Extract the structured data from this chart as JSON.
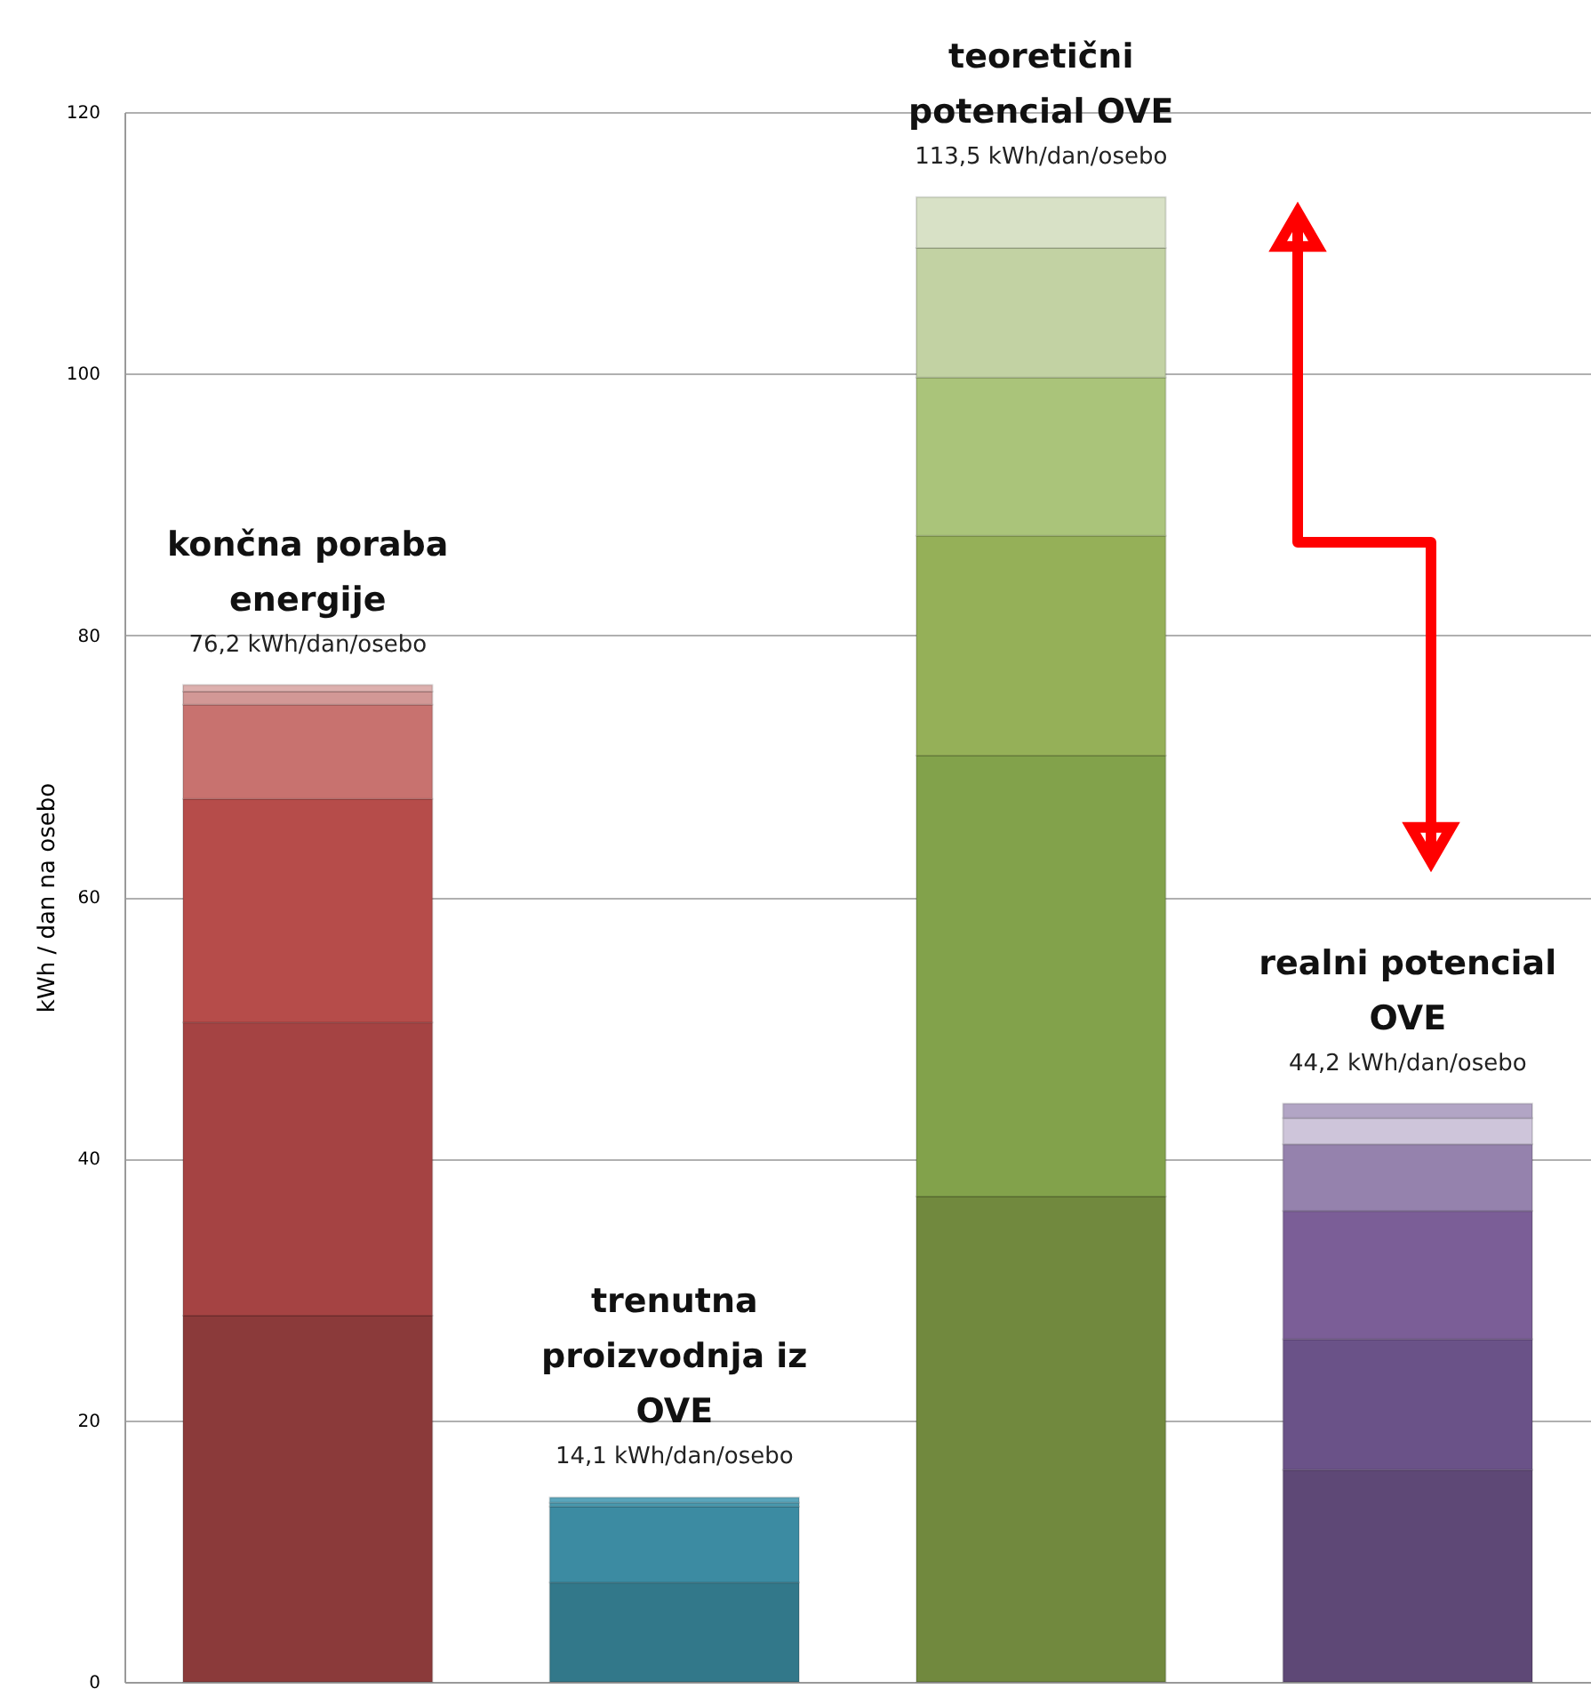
{
  "chart_data": {
    "type": "bar",
    "stacked": true,
    "ylabel": "kWh / dan na osebo",
    "categories": [
      "končna poraba\nenergije",
      "trenutna\nproizvodnja iz\nOVE",
      "teoretični\npotencial OVE",
      "realni potencial\nOVE"
    ],
    "series": [
      {
        "colors": [
          "#8b3a3a",
          "#32788a",
          "#71893e",
          "#5e4876"
        ],
        "values": [
          28.0,
          7.6,
          37.1,
          16.2
        ]
      },
      {
        "colors": [
          "#a54343",
          "#3c8ba2",
          "#82a24b",
          "#6a5288"
        ],
        "values": [
          22.4,
          5.8,
          33.7,
          10.0
        ]
      },
      {
        "colors": [
          "#b64c4a",
          "#4a9bb0",
          "#95b058",
          "#7b5e97"
        ],
        "values": [
          17.1,
          0.3,
          16.8,
          9.8
        ]
      },
      {
        "colors": [
          "#c8726f",
          "#5aa5bb",
          "#aac47a",
          "#9582ad"
        ],
        "values": [
          7.2,
          0.4,
          12.1,
          5.1
        ]
      },
      {
        "colors": [
          "#d29896",
          null,
          "#c2d2a3",
          "#cec5da"
        ],
        "values": [
          1.0,
          null,
          9.9,
          2.0
        ]
      },
      {
        "colors": [
          "#ddb0ae",
          null,
          "#d8e1c6",
          "#b2a5c5"
        ],
        "values": [
          0.5,
          null,
          3.9,
          1.1
        ]
      }
    ],
    "totals": [
      "76,2 kWh/dan/osebo",
      "14,1 kWh/dan/osebo",
      "113,5 kWh/dan/osebo",
      "44,2 kWh/dan/osebo"
    ],
    "ylim": [
      0,
      120
    ],
    "yticks": [
      0,
      20,
      40,
      60,
      80,
      100,
      120
    ],
    "grid": "y"
  }
}
